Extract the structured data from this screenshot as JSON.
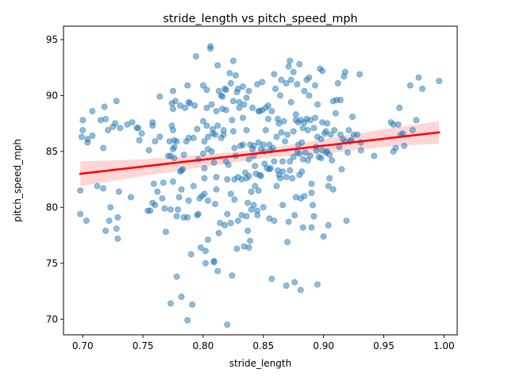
{
  "chart_data": {
    "type": "scatter",
    "title": "stride_length vs pitch_speed_mph",
    "xlabel": "stride_length",
    "ylabel": "pitch_speed_mph",
    "xlim": [
      0.684,
      1.011
    ],
    "ylim": [
      68.6,
      96.2
    ],
    "xticks": [
      0.7,
      0.75,
      0.8,
      0.85,
      0.9,
      0.95,
      1.0
    ],
    "xtick_labels": [
      "0.70",
      "0.75",
      "0.80",
      "0.85",
      "0.90",
      "0.95",
      "1.00"
    ],
    "yticks": [
      70,
      75,
      80,
      85,
      90,
      95
    ],
    "ytick_labels": [
      "70",
      "75",
      "80",
      "85",
      "90",
      "95"
    ],
    "grid": false,
    "point_color": "#1f77b4",
    "point_alpha": 0.5,
    "fit_line": {
      "x": [
        0.698,
        0.996
      ],
      "y": [
        83.0,
        86.7
      ],
      "color": "#ff0000"
    },
    "confidence_band": {
      "x": [
        0.698,
        0.75,
        0.8,
        0.85,
        0.9,
        0.95,
        0.996
      ],
      "lower": [
        81.9,
        82.8,
        83.6,
        84.4,
        84.8,
        85.4,
        85.7
      ],
      "upper": [
        84.1,
        84.3,
        84.7,
        85.2,
        86.1,
        87.0,
        87.7
      ],
      "color": "#ff9999"
    },
    "points": [
      [
        0.698,
        81.5
      ],
      [
        0.698,
        79.4
      ],
      [
        0.699,
        86.3
      ],
      [
        0.7,
        87.8
      ],
      [
        0.7,
        86.9
      ],
      [
        0.703,
        78.8
      ],
      [
        0.704,
        86.1
      ],
      [
        0.704,
        85.8
      ],
      [
        0.708,
        88.6
      ],
      [
        0.708,
        86.4
      ],
      [
        0.712,
        81.9
      ],
      [
        0.715,
        87.8
      ],
      [
        0.717,
        81.7
      ],
      [
        0.717,
        85.3
      ],
      [
        0.718,
        89.0
      ],
      [
        0.719,
        87.9
      ],
      [
        0.719,
        77.9
      ],
      [
        0.721,
        86.9
      ],
      [
        0.722,
        78.8
      ],
      [
        0.723,
        80.0
      ],
      [
        0.725,
        87.2
      ],
      [
        0.727,
        87.5
      ],
      [
        0.728,
        89.5
      ],
      [
        0.728,
        78.1
      ],
      [
        0.729,
        77.2
      ],
      [
        0.729,
        79.1
      ],
      [
        0.73,
        81.4
      ],
      [
        0.731,
        87.1
      ],
      [
        0.737,
        87.4
      ],
      [
        0.74,
        80.9
      ],
      [
        0.741,
        87.6
      ],
      [
        0.745,
        87.1
      ],
      [
        0.746,
        87.1
      ],
      [
        0.747,
        86.0
      ],
      [
        0.749,
        86.6
      ],
      [
        0.754,
        79.7
      ],
      [
        0.755,
        85.1
      ],
      [
        0.756,
        79.7
      ],
      [
        0.758,
        87.6
      ],
      [
        0.758,
        87.3
      ],
      [
        0.758,
        80.4
      ],
      [
        0.759,
        82.1
      ],
      [
        0.76,
        80.2
      ],
      [
        0.76,
        85.9
      ],
      [
        0.762,
        81.4
      ],
      [
        0.764,
        86.3
      ],
      [
        0.764,
        89.9
      ],
      [
        0.766,
        80.8
      ],
      [
        0.767,
        82.2
      ],
      [
        0.768,
        79.9
      ],
      [
        0.769,
        77.8
      ],
      [
        0.771,
        84.6
      ],
      [
        0.772,
        85.9
      ],
      [
        0.773,
        71.4
      ],
      [
        0.773,
        84.6
      ],
      [
        0.773,
        79.8
      ],
      [
        0.774,
        87.3
      ],
      [
        0.774,
        89.3
      ],
      [
        0.775,
        88.8
      ],
      [
        0.775,
        86.9
      ],
      [
        0.775,
        85.2
      ],
      [
        0.775,
        90.4
      ],
      [
        0.775,
        82.3
      ],
      [
        0.776,
        84.4
      ],
      [
        0.776,
        86.0
      ],
      [
        0.776,
        85.4
      ],
      [
        0.777,
        89.5
      ],
      [
        0.778,
        85.9
      ],
      [
        0.778,
        73.8
      ],
      [
        0.778,
        79.2
      ],
      [
        0.779,
        79.8
      ],
      [
        0.78,
        80.9
      ],
      [
        0.781,
        89.1
      ],
      [
        0.781,
        83.2
      ],
      [
        0.782,
        72.0
      ],
      [
        0.782,
        83.3
      ],
      [
        0.782,
        81.6
      ],
      [
        0.783,
        83.4
      ],
      [
        0.784,
        84.7
      ],
      [
        0.784,
        79.1
      ],
      [
        0.785,
        88.9
      ],
      [
        0.786,
        85.9
      ],
      [
        0.787,
        90.9
      ],
      [
        0.787,
        79.1
      ],
      [
        0.787,
        69.9
      ],
      [
        0.788,
        80.6
      ],
      [
        0.788,
        86.2
      ],
      [
        0.788,
        89.4
      ],
      [
        0.789,
        89.3
      ],
      [
        0.79,
        75.8
      ],
      [
        0.791,
        71.3
      ],
      [
        0.792,
        81.9
      ],
      [
        0.792,
        86.2
      ],
      [
        0.793,
        89.1
      ],
      [
        0.794,
        93.5
      ],
      [
        0.795,
        79.3
      ],
      [
        0.795,
        87.0
      ],
      [
        0.796,
        84.3
      ],
      [
        0.796,
        79.4
      ],
      [
        0.797,
        80.8
      ],
      [
        0.798,
        76.4
      ],
      [
        0.799,
        81.0
      ],
      [
        0.8,
        87.7
      ],
      [
        0.8,
        84.8
      ],
      [
        0.8,
        90.9
      ],
      [
        0.801,
        81.2
      ],
      [
        0.801,
        82.6
      ],
      [
        0.801,
        83.5
      ],
      [
        0.801,
        85.9
      ],
      [
        0.802,
        76.1
      ],
      [
        0.802,
        75.0
      ],
      [
        0.803,
        87.3
      ],
      [
        0.803,
        90.5
      ],
      [
        0.803,
        88.9
      ],
      [
        0.804,
        77.1
      ],
      [
        0.804,
        86.3
      ],
      [
        0.804,
        80.6
      ],
      [
        0.804,
        85.2
      ],
      [
        0.806,
        94.2
      ],
      [
        0.806,
        94.4
      ],
      [
        0.807,
        89.2
      ],
      [
        0.807,
        85.0
      ],
      [
        0.808,
        86.6
      ],
      [
        0.808,
        87.0
      ],
      [
        0.809,
        84.0
      ],
      [
        0.809,
        75.2
      ],
      [
        0.809,
        75.1
      ],
      [
        0.81,
        86.5
      ],
      [
        0.81,
        80.3
      ],
      [
        0.811,
        81.6
      ],
      [
        0.811,
        82.7
      ],
      [
        0.811,
        88.6
      ],
      [
        0.812,
        92.7
      ],
      [
        0.812,
        87.3
      ],
      [
        0.812,
        74.3
      ],
      [
        0.813,
        90.4
      ],
      [
        0.813,
        77.7
      ],
      [
        0.814,
        78.6
      ],
      [
        0.815,
        86.2
      ],
      [
        0.815,
        90.0
      ],
      [
        0.816,
        88.8
      ],
      [
        0.816,
        89.9
      ],
      [
        0.817,
        86.5
      ],
      [
        0.817,
        86.9
      ],
      [
        0.818,
        78.4
      ],
      [
        0.818,
        90.6
      ],
      [
        0.819,
        84.1
      ],
      [
        0.819,
        90.5
      ],
      [
        0.819,
        88.7
      ],
      [
        0.82,
        69.5
      ],
      [
        0.82,
        82.5
      ],
      [
        0.82,
        79.4
      ],
      [
        0.821,
        83.8
      ],
      [
        0.822,
        92.0
      ],
      [
        0.823,
        81.2
      ],
      [
        0.823,
        91.1
      ],
      [
        0.823,
        78.6
      ],
      [
        0.824,
        87.8
      ],
      [
        0.824,
        73.9
      ],
      [
        0.825,
        89.5
      ],
      [
        0.825,
        93.1
      ],
      [
        0.825,
        86.8
      ],
      [
        0.826,
        85.3
      ],
      [
        0.826,
        82.5
      ],
      [
        0.826,
        80.7
      ],
      [
        0.827,
        91.8
      ],
      [
        0.827,
        84.6
      ],
      [
        0.828,
        76.3
      ],
      [
        0.828,
        90.3
      ],
      [
        0.829,
        82.7
      ],
      [
        0.829,
        90.6
      ],
      [
        0.829,
        78.8
      ],
      [
        0.83,
        88.9
      ],
      [
        0.83,
        89.4
      ],
      [
        0.831,
        85.5
      ],
      [
        0.832,
        82.5
      ],
      [
        0.832,
        79.3
      ],
      [
        0.833,
        85.6
      ],
      [
        0.833,
        88.0
      ],
      [
        0.833,
        90.8
      ],
      [
        0.834,
        76.5
      ],
      [
        0.834,
        89.2
      ],
      [
        0.835,
        83.1
      ],
      [
        0.836,
        86.9
      ],
      [
        0.836,
        79.2
      ],
      [
        0.836,
        82.6
      ],
      [
        0.836,
        89.8
      ],
      [
        0.837,
        80.4
      ],
      [
        0.837,
        77.9
      ],
      [
        0.838,
        84.3
      ],
      [
        0.838,
        76.4
      ],
      [
        0.838,
        82.8
      ],
      [
        0.838,
        90.4
      ],
      [
        0.839,
        85.6
      ],
      [
        0.839,
        77.0
      ],
      [
        0.84,
        79.8
      ],
      [
        0.84,
        81.4
      ],
      [
        0.841,
        85.2
      ],
      [
        0.841,
        88.9
      ],
      [
        0.842,
        85.5
      ],
      [
        0.842,
        84.6
      ],
      [
        0.842,
        80.2
      ],
      [
        0.843,
        83.7
      ],
      [
        0.843,
        81.9
      ],
      [
        0.844,
        83.0
      ],
      [
        0.845,
        91.0
      ],
      [
        0.845,
        79.7
      ],
      [
        0.845,
        79.3
      ],
      [
        0.846,
        88.6
      ],
      [
        0.846,
        85.8
      ],
      [
        0.846,
        81.5
      ],
      [
        0.847,
        82.9
      ],
      [
        0.847,
        88.6
      ],
      [
        0.848,
        85.2
      ],
      [
        0.848,
        82.8
      ],
      [
        0.849,
        91.2
      ],
      [
        0.849,
        88.7
      ],
      [
        0.85,
        85.6
      ],
      [
        0.85,
        80.0
      ],
      [
        0.851,
        85.0
      ],
      [
        0.851,
        83.9
      ],
      [
        0.852,
        86.9
      ],
      [
        0.852,
        88.9
      ],
      [
        0.853,
        83.5
      ],
      [
        0.854,
        87.9
      ],
      [
        0.854,
        89.1
      ],
      [
        0.855,
        85.6
      ],
      [
        0.855,
        83.4
      ],
      [
        0.855,
        79.0
      ],
      [
        0.856,
        83.5
      ],
      [
        0.856,
        85.1
      ],
      [
        0.857,
        73.6
      ],
      [
        0.857,
        88.6
      ],
      [
        0.858,
        85.3
      ],
      [
        0.859,
        78.8
      ],
      [
        0.859,
        91.9
      ],
      [
        0.859,
        84.1
      ],
      [
        0.86,
        90.6
      ],
      [
        0.861,
        81.9
      ],
      [
        0.861,
        86.3
      ],
      [
        0.862,
        83.3
      ],
      [
        0.862,
        87.9
      ],
      [
        0.863,
        82.9
      ],
      [
        0.863,
        87.5
      ],
      [
        0.864,
        82.6
      ],
      [
        0.864,
        90.0
      ],
      [
        0.865,
        86.7
      ],
      [
        0.865,
        91.4
      ],
      [
        0.866,
        83.2
      ],
      [
        0.866,
        80.2
      ],
      [
        0.866,
        84.1
      ],
      [
        0.867,
        87.7
      ],
      [
        0.868,
        85.9
      ],
      [
        0.869,
        91.1
      ],
      [
        0.869,
        82.7
      ],
      [
        0.869,
        73.0
      ],
      [
        0.87,
        86.5
      ],
      [
        0.87,
        76.9
      ],
      [
        0.871,
        78.7
      ],
      [
        0.871,
        92.6
      ],
      [
        0.872,
        84.1
      ],
      [
        0.872,
        93.1
      ],
      [
        0.872,
        83.3
      ],
      [
        0.873,
        89.4
      ],
      [
        0.873,
        91.4
      ],
      [
        0.874,
        82.6
      ],
      [
        0.875,
        84.5
      ],
      [
        0.875,
        86.8
      ],
      [
        0.875,
        92.1
      ],
      [
        0.876,
        73.3
      ],
      [
        0.876,
        79.3
      ],
      [
        0.877,
        87.8
      ],
      [
        0.877,
        88.3
      ],
      [
        0.877,
        80.9
      ],
      [
        0.878,
        91.0
      ],
      [
        0.878,
        84.9
      ],
      [
        0.879,
        87.6
      ],
      [
        0.879,
        85.6
      ],
      [
        0.88,
        82.9
      ],
      [
        0.88,
        84.8
      ],
      [
        0.88,
        92.8
      ],
      [
        0.881,
        72.6
      ],
      [
        0.881,
        87.8
      ],
      [
        0.881,
        80.8
      ],
      [
        0.882,
        85.8
      ],
      [
        0.882,
        83.2
      ],
      [
        0.883,
        84.3
      ],
      [
        0.883,
        87.1
      ],
      [
        0.883,
        78.2
      ],
      [
        0.884,
        90.4
      ],
      [
        0.884,
        87.6
      ],
      [
        0.884,
        81.0
      ],
      [
        0.885,
        84.9
      ],
      [
        0.886,
        87.9
      ],
      [
        0.886,
        91.4
      ],
      [
        0.887,
        86.9
      ],
      [
        0.887,
        84.2
      ],
      [
        0.888,
        90.0
      ],
      [
        0.888,
        91.6
      ],
      [
        0.889,
        87.8
      ],
      [
        0.889,
        84.6
      ],
      [
        0.89,
        82.1
      ],
      [
        0.89,
        78.2
      ],
      [
        0.89,
        81.3
      ],
      [
        0.891,
        80.2
      ],
      [
        0.892,
        79.2
      ],
      [
        0.892,
        87.1
      ],
      [
        0.893,
        88.0
      ],
      [
        0.893,
        90.9
      ],
      [
        0.894,
        85.4
      ],
      [
        0.894,
        85.1
      ],
      [
        0.895,
        86.3
      ],
      [
        0.895,
        89.2
      ],
      [
        0.895,
        73.1
      ],
      [
        0.896,
        84.5
      ],
      [
        0.897,
        92.4
      ],
      [
        0.898,
        84.4
      ],
      [
        0.898,
        86.1
      ],
      [
        0.899,
        85.1
      ],
      [
        0.899,
        87.6
      ],
      [
        0.899,
        92.2
      ],
      [
        0.9,
        77.4
      ],
      [
        0.901,
        86.6
      ],
      [
        0.902,
        86.8
      ],
      [
        0.902,
        84.9
      ],
      [
        0.903,
        85.0
      ],
      [
        0.903,
        87.5
      ],
      [
        0.904,
        78.4
      ],
      [
        0.904,
        81.9
      ],
      [
        0.905,
        82.6
      ],
      [
        0.905,
        84.7
      ],
      [
        0.906,
        86.5
      ],
      [
        0.907,
        84.2
      ],
      [
        0.908,
        81.6
      ],
      [
        0.908,
        89.5
      ],
      [
        0.909,
        86.9
      ],
      [
        0.91,
        88.4
      ],
      [
        0.911,
        89.6
      ],
      [
        0.912,
        91.1
      ],
      [
        0.913,
        85.4
      ],
      [
        0.914,
        86.5
      ],
      [
        0.914,
        89.6
      ],
      [
        0.915,
        83.4
      ],
      [
        0.916,
        86.1
      ],
      [
        0.917,
        91.7
      ],
      [
        0.918,
        85.9
      ],
      [
        0.918,
        92.1
      ],
      [
        0.919,
        78.8
      ],
      [
        0.92,
        84.9
      ],
      [
        0.921,
        86.9
      ],
      [
        0.922,
        85.9
      ],
      [
        0.923,
        86.0
      ],
      [
        0.924,
        88.1
      ],
      [
        0.925,
        86.5
      ],
      [
        0.928,
        86.5
      ],
      [
        0.93,
        91.9
      ],
      [
        0.931,
        85.1
      ],
      [
        0.931,
        85.8
      ],
      [
        0.942,
        84.6
      ],
      [
        0.956,
        87.6
      ],
      [
        0.958,
        85.0
      ],
      [
        0.958,
        87.4
      ],
      [
        0.96,
        85.3
      ],
      [
        0.962,
        87.4
      ],
      [
        0.963,
        88.9
      ],
      [
        0.964,
        86.5
      ],
      [
        0.966,
        86.6
      ],
      [
        0.967,
        85.5
      ],
      [
        0.972,
        90.9
      ],
      [
        0.974,
        86.9
      ],
      [
        0.977,
        87.8
      ],
      [
        0.979,
        91.6
      ],
      [
        0.982,
        90.6
      ],
      [
        0.996,
        91.3
      ]
    ]
  }
}
